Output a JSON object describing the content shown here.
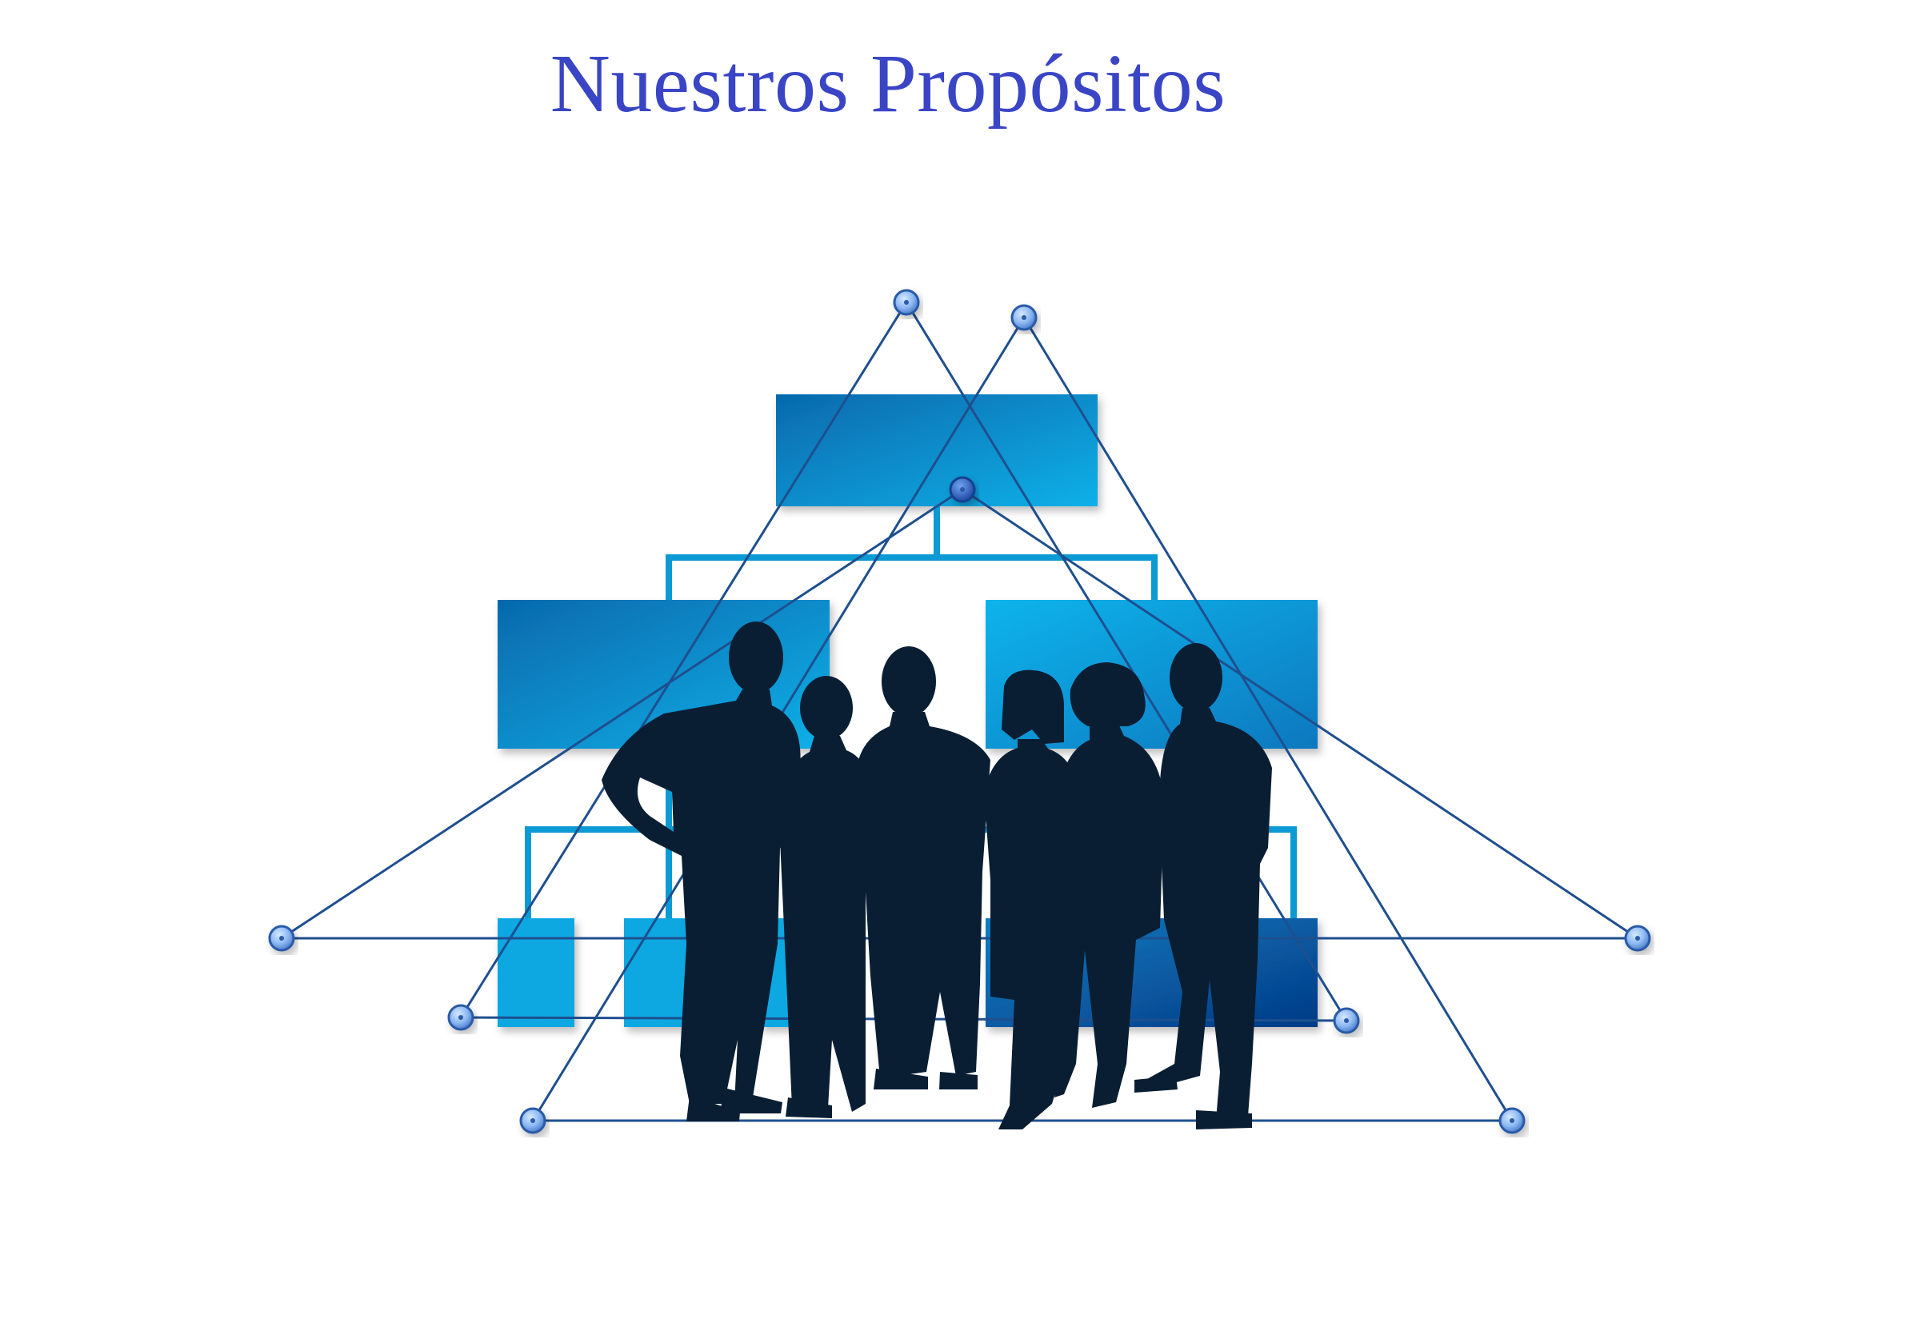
{
  "page": {
    "title": "Nuestros Propósitos"
  },
  "colors": {
    "title": "#3a45c6",
    "box_dark": "#0a6fb0",
    "box_light": "#0aa5e0",
    "connector": "#0b9ad3",
    "network_line": "#1e4f8f",
    "node_fill": "#8bb7f0",
    "node_stroke": "#2c5aa8",
    "silhouette": "#0a1e33"
  },
  "illustration": {
    "subject": "org-chart-with-team-silhouettes",
    "people_count": 6,
    "network_node_count": 10
  }
}
